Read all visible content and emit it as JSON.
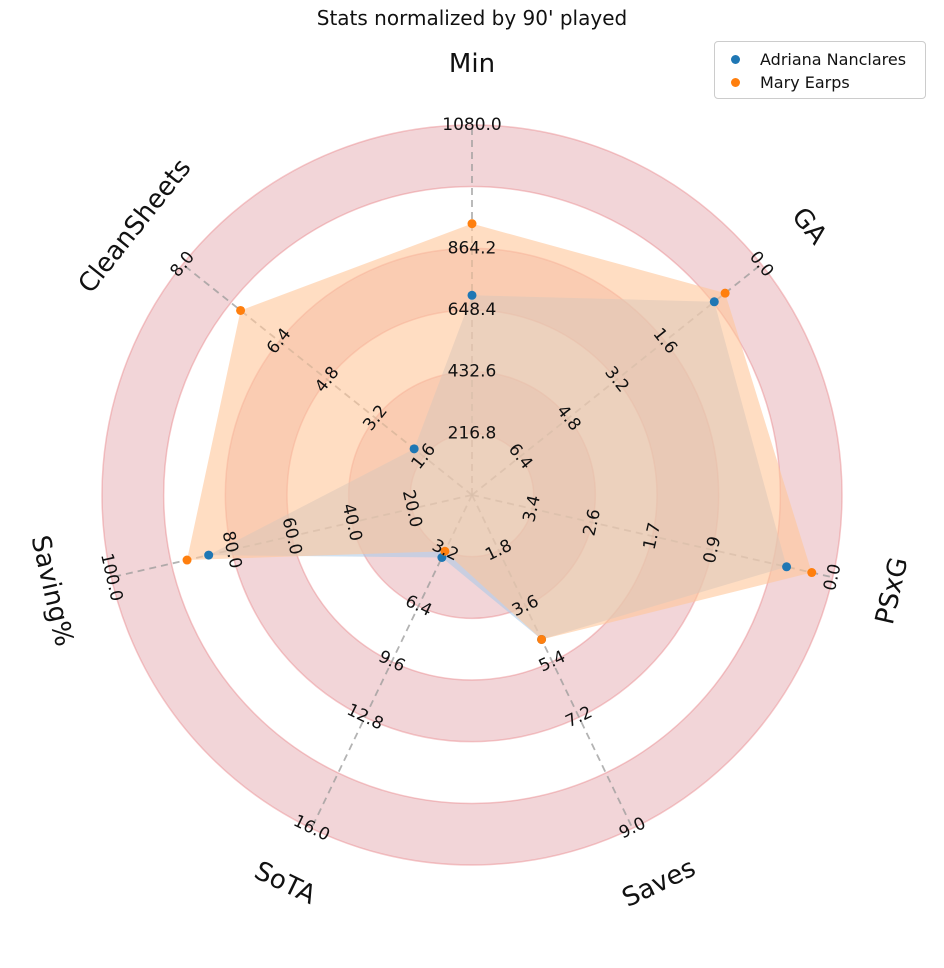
{
  "chart_data": {
    "type": "radar",
    "title": "Stats normalized by 90' played",
    "axes": [
      {
        "name": "Min",
        "ticks": [
          "216.8",
          "432.6",
          "648.4",
          "864.2",
          "1080.0"
        ],
        "range": [
          0,
          1080
        ],
        "reversed": false
      },
      {
        "name": "GA",
        "ticks": [
          "6.4",
          "4.8",
          "3.2",
          "1.6",
          "0.0"
        ],
        "range": [
          8,
          0
        ],
        "reversed": true
      },
      {
        "name": "PSxG",
        "ticks": [
          "3.4",
          "2.6",
          "1.7",
          "0.9",
          "0.0"
        ],
        "range": [
          4.3,
          0
        ],
        "reversed": true
      },
      {
        "name": "Saves",
        "ticks": [
          "1.8",
          "3.6",
          "5.4",
          "7.2",
          "9.0"
        ],
        "range": [
          0,
          9
        ],
        "reversed": false
      },
      {
        "name": "SoTA",
        "ticks": [
          "3.2",
          "6.4",
          "9.6",
          "12.8",
          "16.0"
        ],
        "range": [
          0,
          16
        ],
        "reversed": false
      },
      {
        "name": "Saving%",
        "ticks": [
          "20.0",
          "40.0",
          "60.0",
          "80.0",
          "100.0"
        ],
        "range": [
          0,
          100
        ],
        "reversed": false
      },
      {
        "name": "CleanSheets",
        "ticks": [
          "1.6",
          "3.2",
          "4.8",
          "6.4",
          "8.0"
        ],
        "range": [
          0,
          8
        ],
        "reversed": false
      }
    ],
    "series": [
      {
        "name": "Adriana Nanclares",
        "color": "#1f77b4",
        "values": [
          583,
          1.3,
          0.55,
          3.9,
          3.0,
          73.0,
          1.6
        ]
      },
      {
        "name": "Mary Earps",
        "color": "#ff7f0e",
        "values": [
          792,
          1.0,
          0.25,
          3.9,
          2.7,
          79.0,
          6.4
        ]
      }
    ],
    "legend": "top-right",
    "grid": true
  }
}
